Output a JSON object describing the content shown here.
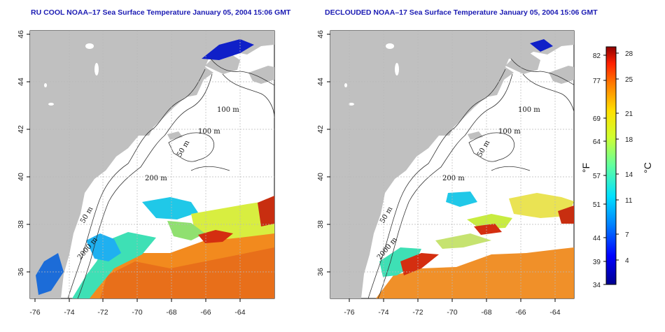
{
  "panels": [
    {
      "title": "RU COOL NOAA–17 Sea Surface Temperature January 05, 2004 15:06 GMT",
      "contour_labels": [
        "100 m",
        "100 m",
        "50 m",
        "200 m",
        "50 m",
        "2000 m"
      ]
    },
    {
      "title": "DECLOUDED NOAA–17 Sea Surface Temperature January 05, 2004 15:06 GMT",
      "contour_labels": [
        "100 m",
        "100 m",
        "50 m",
        "200 m",
        "50 m",
        "2000 m"
      ]
    }
  ],
  "lon_ticks": [
    "-76",
    "-74",
    "-72",
    "-70",
    "-68",
    "-66",
    "-64"
  ],
  "lat_ticks": [
    "36",
    "38",
    "40",
    "42",
    "44",
    "46"
  ],
  "colorbar": {
    "f_label": "°F",
    "c_label": "°C",
    "f_ticks": [
      "82",
      "77",
      "69",
      "64",
      "57",
      "51",
      "44",
      "39",
      "34"
    ],
    "c_ticks": [
      "28",
      "25",
      "21",
      "18",
      "14",
      "11",
      "7",
      "4"
    ],
    "gradient": [
      "#00008f",
      "#0000ff",
      "#0080ff",
      "#00e0ff",
      "#60ff9f",
      "#d0ff30",
      "#ffe000",
      "#ff8000",
      "#ff2000",
      "#8f0000"
    ]
  },
  "colors": {
    "land": "#c0c0c0",
    "grid": "#b8b8b8",
    "warm": "#ff7f0e",
    "cool": "#1f77b4"
  }
}
